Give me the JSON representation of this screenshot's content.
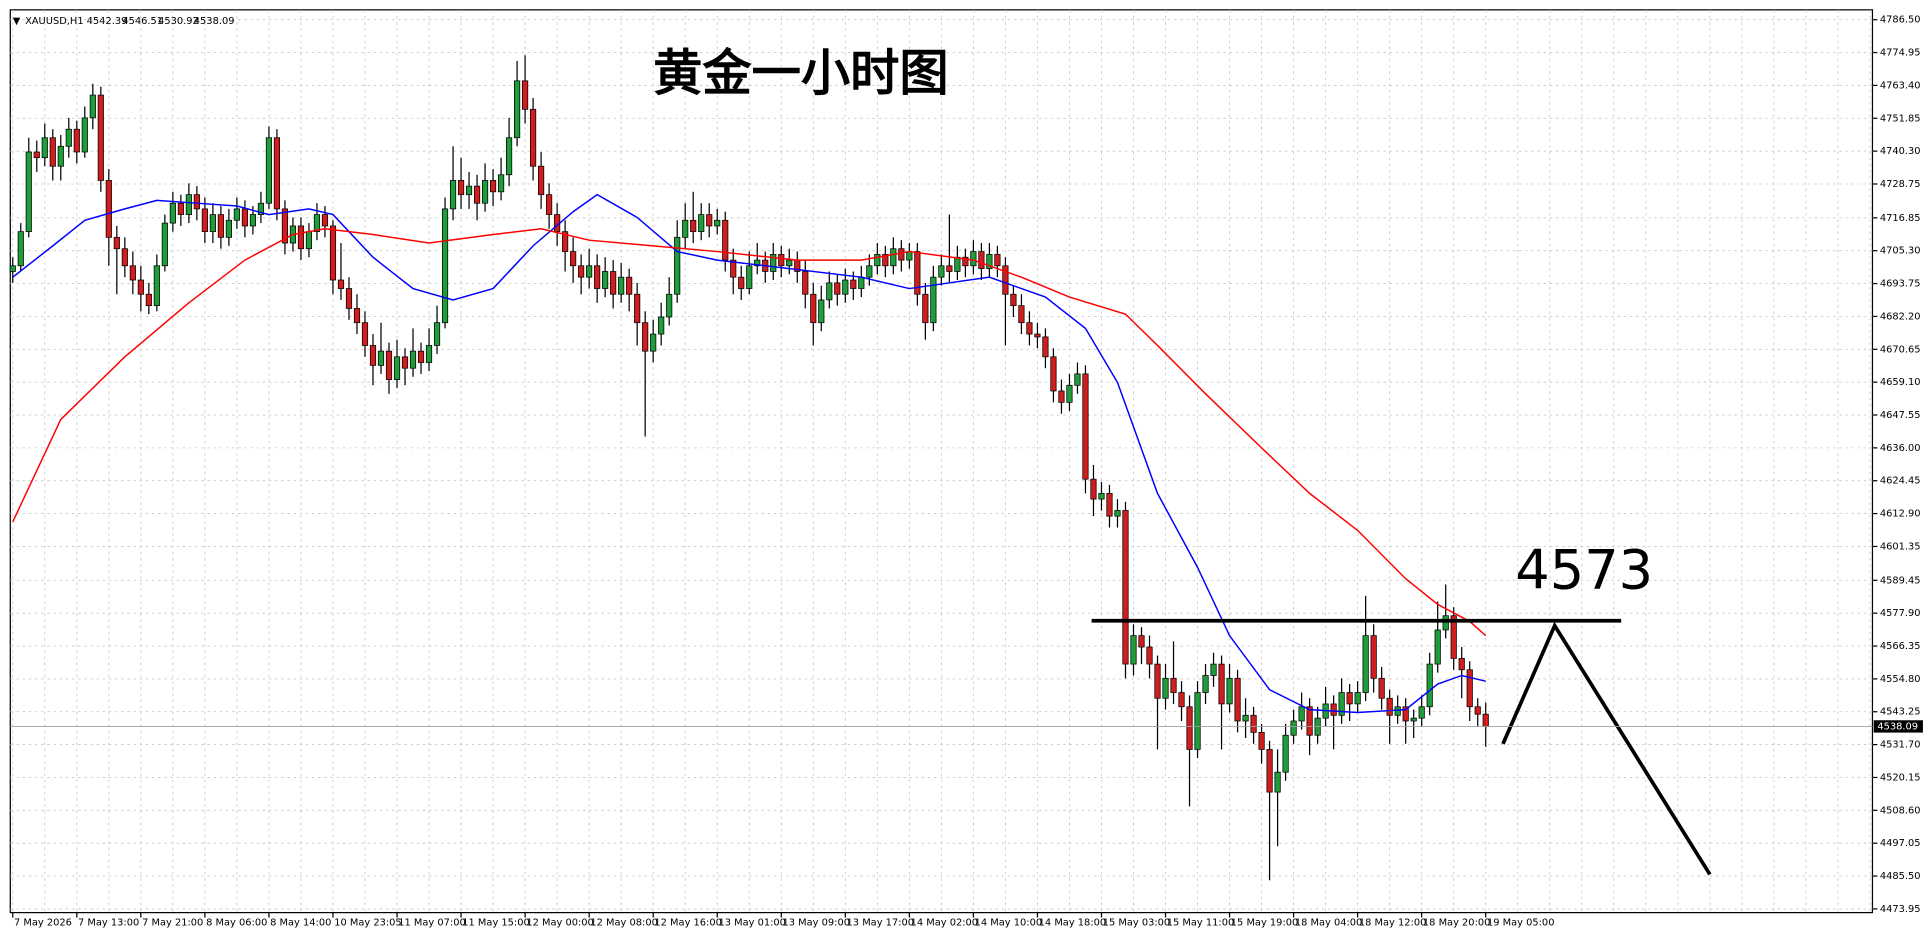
{
  "header": {
    "symbol": "XAUUSD,H1",
    "ohlc": [
      4542.39,
      4546.51,
      4530.92,
      4538.09
    ]
  },
  "chart_data": {
    "type": "candlestick",
    "title": "黄金一小时图",
    "level_label": "4573",
    "up_color": "#1f9d3a",
    "down_color": "#d11d1d",
    "ylim": [
      4472.65,
      4789.96
    ],
    "yticks": [
      {
        "value": 4786.5,
        "label": "4786.50"
      },
      {
        "value": 4774.95,
        "label": "4774.95"
      },
      {
        "value": 4763.4,
        "label": "4763.40"
      },
      {
        "value": 4751.85,
        "label": "4751.85"
      },
      {
        "value": 4740.3,
        "label": "4740.30"
      },
      {
        "value": 4728.75,
        "label": "4728.75"
      },
      {
        "value": 4716.85,
        "label": "4716.85"
      },
      {
        "value": 4705.3,
        "label": "4705.30"
      },
      {
        "value": 4693.75,
        "label": "4693.75"
      },
      {
        "value": 4682.2,
        "label": "4682.20"
      },
      {
        "value": 4670.65,
        "label": "4670.65"
      },
      {
        "value": 4659.1,
        "label": "4659.10"
      },
      {
        "value": 4647.55,
        "label": "4647.55"
      },
      {
        "value": 4636,
        "label": "4636.00"
      },
      {
        "value": 4624.45,
        "label": "4624.45"
      },
      {
        "value": 4612.9,
        "label": "4612.90"
      },
      {
        "value": 4601.35,
        "label": "4601.35"
      },
      {
        "value": 4589.45,
        "label": "4589.45"
      },
      {
        "value": 4577.9,
        "label": "4577.90"
      },
      {
        "value": 4566.35,
        "label": "4566.35"
      },
      {
        "value": 4554.8,
        "label": "4554.80"
      },
      {
        "value": 4543.25,
        "label": "4543.25"
      },
      {
        "value": 4531.7,
        "label": "4531.70"
      },
      {
        "value": 4520.15,
        "label": "4520.15"
      },
      {
        "value": 4508.6,
        "label": "4508.60"
      },
      {
        "value": 4497.05,
        "label": "4497.05"
      },
      {
        "value": 4485.5,
        "label": "4485.50"
      },
      {
        "value": 4473.95,
        "label": "4473.95"
      }
    ],
    "current_price": 4538.09,
    "categories": [
      "7 May 2026",
      "7 May 13:00",
      "7 May 21:00",
      "8 May 06:00",
      "8 May 14:00",
      "10 May 23:05",
      "11 May 07:00",
      "11 May 15:00",
      "12 May 00:00",
      "12 May 08:00",
      "12 May 16:00",
      "13 May 01:00",
      "13 May 09:00",
      "13 May 17:00",
      "14 May 02:00",
      "14 May 10:00",
      "14 May 18:00",
      "15 May 03:00",
      "15 May 11:00",
      "15 May 19:00",
      "18 May 04:00",
      "18 May 12:00",
      "18 May 20:00",
      "19 May 05:00"
    ],
    "candles": [
      [
        4698,
        4703,
        4694,
        4700
      ],
      [
        4700,
        4715,
        4698,
        4712
      ],
      [
        4712,
        4745,
        4710,
        4740
      ],
      [
        4740,
        4744,
        4733,
        4738
      ],
      [
        4738,
        4750,
        4735,
        4745
      ],
      [
        4745,
        4748,
        4730,
        4735
      ],
      [
        4735,
        4746,
        4730,
        4742
      ],
      [
        4742,
        4752,
        4738,
        4748
      ],
      [
        4748,
        4751,
        4736,
        4740
      ],
      [
        4740,
        4756,
        4738,
        4752
      ],
      [
        4752,
        4764,
        4748,
        4760
      ],
      [
        4760,
        4763,
        4726,
        4730
      ],
      [
        4730,
        4734,
        4700,
        4710
      ],
      [
        4710,
        4714,
        4690,
        4706
      ],
      [
        4706,
        4710,
        4696,
        4700
      ],
      [
        4700,
        4705,
        4690,
        4695
      ],
      [
        4695,
        4700,
        4684,
        4690
      ],
      [
        4690,
        4694,
        4683,
        4686
      ],
      [
        4686,
        4704,
        4684,
        4700
      ],
      [
        4700,
        4718,
        4698,
        4715
      ],
      [
        4715,
        4726,
        4712,
        4722
      ],
      [
        4722,
        4725,
        4714,
        4718
      ],
      [
        4718,
        4729,
        4715,
        4725
      ],
      [
        4725,
        4728,
        4716,
        4720
      ],
      [
        4720,
        4724,
        4708,
        4712
      ],
      [
        4712,
        4722,
        4708,
        4718
      ],
      [
        4718,
        4721,
        4706,
        4710
      ],
      [
        4710,
        4720,
        4707,
        4716
      ],
      [
        4716,
        4724,
        4713,
        4720
      ],
      [
        4720,
        4723,
        4710,
        4714
      ],
      [
        4714,
        4721,
        4711,
        4718
      ],
      [
        4718,
        4726,
        4715,
        4722
      ],
      [
        4722,
        4749,
        4720,
        4745
      ],
      [
        4745,
        4748,
        4716,
        4720
      ],
      [
        4720,
        4723,
        4704,
        4708
      ],
      [
        4708,
        4717,
        4705,
        4714
      ],
      [
        4714,
        4717,
        4702,
        4706
      ],
      [
        4706,
        4715,
        4703,
        4712
      ],
      [
        4712,
        4722,
        4709,
        4718
      ],
      [
        4718,
        4721,
        4710,
        4714
      ],
      [
        4714,
        4716,
        4690,
        4695
      ],
      [
        4695,
        4708,
        4688,
        4692
      ],
      [
        4692,
        4696,
        4681,
        4685
      ],
      [
        4685,
        4690,
        4676,
        4680
      ],
      [
        4680,
        4684,
        4668,
        4672
      ],
      [
        4672,
        4676,
        4658,
        4665
      ],
      [
        4665,
        4680,
        4662,
        4670
      ],
      [
        4670,
        4673,
        4655,
        4660
      ],
      [
        4660,
        4674,
        4657,
        4668
      ],
      [
        4668,
        4671,
        4658,
        4664
      ],
      [
        4664,
        4678,
        4661,
        4670
      ],
      [
        4670,
        4673,
        4662,
        4666
      ],
      [
        4666,
        4678,
        4663,
        4672
      ],
      [
        4672,
        4686,
        4669,
        4680
      ],
      [
        4680,
        4724,
        4678,
        4720
      ],
      [
        4720,
        4742,
        4716,
        4730
      ],
      [
        4730,
        4738,
        4720,
        4725
      ],
      [
        4725,
        4733,
        4720,
        4728
      ],
      [
        4728,
        4732,
        4716,
        4722
      ],
      [
        4722,
        4736,
        4719,
        4730
      ],
      [
        4730,
        4734,
        4721,
        4726
      ],
      [
        4726,
        4738,
        4723,
        4732
      ],
      [
        4732,
        4752,
        4728,
        4745
      ],
      [
        4745,
        4772,
        4742,
        4765
      ],
      [
        4765,
        4774,
        4750,
        4755
      ],
      [
        4755,
        4759,
        4730,
        4735
      ],
      [
        4735,
        4740,
        4720,
        4725
      ],
      [
        4725,
        4729,
        4713,
        4718
      ],
      [
        4718,
        4722,
        4707,
        4712
      ],
      [
        4712,
        4716,
        4698,
        4705
      ],
      [
        4705,
        4710,
        4694,
        4700
      ],
      [
        4700,
        4704,
        4690,
        4696
      ],
      [
        4696,
        4706,
        4692,
        4700
      ],
      [
        4700,
        4704,
        4687,
        4692
      ],
      [
        4692,
        4703,
        4689,
        4698
      ],
      [
        4698,
        4702,
        4685,
        4690
      ],
      [
        4690,
        4701,
        4687,
        4696
      ],
      [
        4696,
        4699,
        4684,
        4690
      ],
      [
        4690,
        4694,
        4672,
        4680
      ],
      [
        4680,
        4684,
        4640,
        4670
      ],
      [
        4670,
        4681,
        4666,
        4676
      ],
      [
        4676,
        4687,
        4672,
        4682
      ],
      [
        4682,
        4696,
        4679,
        4690
      ],
      [
        4690,
        4716,
        4687,
        4710
      ],
      [
        4710,
        4722,
        4706,
        4716
      ],
      [
        4716,
        4726,
        4708,
        4712
      ],
      [
        4712,
        4722,
        4709,
        4718
      ],
      [
        4718,
        4722,
        4710,
        4714
      ],
      [
        4714,
        4720,
        4711,
        4716
      ],
      [
        4716,
        4719,
        4698,
        4702
      ],
      [
        4702,
        4706,
        4690,
        4696
      ],
      [
        4696,
        4700,
        4688,
        4692
      ],
      [
        4692,
        4705,
        4690,
        4700
      ],
      [
        4700,
        4708,
        4697,
        4702
      ],
      [
        4702,
        4705,
        4694,
        4698
      ],
      [
        4698,
        4708,
        4695,
        4704
      ],
      [
        4704,
        4707,
        4696,
        4700
      ],
      [
        4700,
        4706,
        4697,
        4702
      ],
      [
        4702,
        4705,
        4694,
        4698
      ],
      [
        4698,
        4702,
        4685,
        4690
      ],
      [
        4690,
        4694,
        4672,
        4680
      ],
      [
        4680,
        4693,
        4677,
        4688
      ],
      [
        4688,
        4698,
        4685,
        4694
      ],
      [
        4694,
        4697,
        4686,
        4690
      ],
      [
        4690,
        4699,
        4687,
        4695
      ],
      [
        4695,
        4698,
        4688,
        4692
      ],
      [
        4692,
        4700,
        4689,
        4696
      ],
      [
        4696,
        4704,
        4693,
        4700
      ],
      [
        4700,
        4708,
        4697,
        4704
      ],
      [
        4704,
        4707,
        4696,
        4700
      ],
      [
        4700,
        4710,
        4697,
        4706
      ],
      [
        4706,
        4709,
        4698,
        4702
      ],
      [
        4702,
        4708,
        4699,
        4705
      ],
      [
        4705,
        4708,
        4686,
        4690
      ],
      [
        4690,
        4694,
        4674,
        4680
      ],
      [
        4680,
        4700,
        4677,
        4696
      ],
      [
        4696,
        4704,
        4693,
        4700
      ],
      [
        4700,
        4718,
        4694,
        4698
      ],
      [
        4698,
        4707,
        4695,
        4703
      ],
      [
        4703,
        4706,
        4696,
        4700
      ],
      [
        4700,
        4709,
        4697,
        4705
      ],
      [
        4705,
        4708,
        4695,
        4699
      ],
      [
        4699,
        4708,
        4696,
        4704
      ],
      [
        4704,
        4707,
        4696,
        4700
      ],
      [
        4700,
        4703,
        4672,
        4690
      ],
      [
        4690,
        4693,
        4682,
        4686
      ],
      [
        4686,
        4690,
        4676,
        4680
      ],
      [
        4680,
        4684,
        4672,
        4676
      ],
      [
        4676,
        4680,
        4671,
        4675
      ],
      [
        4675,
        4678,
        4664,
        4668
      ],
      [
        4668,
        4671,
        4652,
        4656
      ],
      [
        4656,
        4660,
        4648,
        4652
      ],
      [
        4652,
        4662,
        4649,
        4658
      ],
      [
        4658,
        4666,
        4655,
        4662
      ],
      [
        4662,
        4665,
        4620,
        4625
      ],
      [
        4625,
        4630,
        4612,
        4618
      ],
      [
        4618,
        4624,
        4614,
        4620
      ],
      [
        4620,
        4623,
        4608,
        4612
      ],
      [
        4612,
        4618,
        4608,
        4614
      ],
      [
        4614,
        4617,
        4555,
        4560
      ],
      [
        4560,
        4574,
        4556,
        4570
      ],
      [
        4570,
        4573,
        4560,
        4566
      ],
      [
        4566,
        4570,
        4555,
        4560
      ],
      [
        4560,
        4563,
        4530,
        4548
      ],
      [
        4548,
        4560,
        4544,
        4555
      ],
      [
        4555,
        4568,
        4546,
        4550
      ],
      [
        4550,
        4554,
        4540,
        4545
      ],
      [
        4545,
        4549,
        4510,
        4530
      ],
      [
        4530,
        4554,
        4527,
        4550
      ],
      [
        4550,
        4560,
        4546,
        4556
      ],
      [
        4556,
        4564,
        4552,
        4560
      ],
      [
        4560,
        4563,
        4530,
        4546
      ],
      [
        4546,
        4560,
        4543,
        4555
      ],
      [
        4555,
        4558,
        4536,
        4540
      ],
      [
        4540,
        4548,
        4534,
        4542
      ],
      [
        4542,
        4545,
        4532,
        4536
      ],
      [
        4536,
        4539,
        4525,
        4530
      ],
      [
        4530,
        4533,
        4484,
        4515
      ],
      [
        4515,
        4530,
        4496,
        4522
      ],
      [
        4522,
        4539,
        4519,
        4535
      ],
      [
        4535,
        4544,
        4532,
        4540
      ],
      [
        4540,
        4550,
        4537,
        4545
      ],
      [
        4545,
        4548,
        4528,
        4535
      ],
      [
        4535,
        4545,
        4532,
        4541
      ],
      [
        4541,
        4552,
        4538,
        4546
      ],
      [
        4546,
        4549,
        4530,
        4542
      ],
      [
        4542,
        4555,
        4539,
        4550
      ],
      [
        4550,
        4553,
        4540,
        4546
      ],
      [
        4546,
        4554,
        4543,
        4550
      ],
      [
        4550,
        4584,
        4547,
        4570
      ],
      [
        4570,
        4574,
        4550,
        4555
      ],
      [
        4555,
        4559,
        4544,
        4548
      ],
      [
        4548,
        4551,
        4532,
        4542
      ],
      [
        4542,
        4549,
        4539,
        4545
      ],
      [
        4545,
        4548,
        4532,
        4540
      ],
      [
        4540,
        4544,
        4534,
        4541
      ],
      [
        4541,
        4549,
        4538,
        4545
      ],
      [
        4545,
        4564,
        4542,
        4560
      ],
      [
        4560,
        4582,
        4557,
        4572
      ],
      [
        4572,
        4588,
        4569,
        4577
      ],
      [
        4577,
        4580,
        4558,
        4562
      ],
      [
        4562,
        4566,
        4548,
        4558
      ],
      [
        4558,
        4561,
        4540,
        4545
      ],
      [
        4545,
        4548,
        4538,
        4542.39
      ],
      [
        4542.39,
        4546.51,
        4530.92,
        4538.09
      ]
    ],
    "moving_averages": [
      {
        "color": "#0000ff",
        "x": [
          0,
          5,
          9,
          14,
          18,
          23,
          28,
          32,
          37,
          40,
          45,
          50,
          55,
          60,
          65,
          70,
          73,
          78,
          83,
          88,
          106,
          112,
          122,
          129,
          134,
          138,
          143,
          148,
          152,
          157,
          162,
          168,
          174,
          178,
          181,
          184
        ],
        "values": [
          4696,
          4707,
          4716,
          4720,
          4723,
          4722,
          4721,
          4718,
          4720,
          4718,
          4703,
          4692,
          4688,
          4692,
          4707,
          4719,
          4725,
          4717,
          4705,
          4702,
          4696,
          4692,
          4696,
          4689,
          4678,
          4659,
          4620,
          4594,
          4570,
          4551,
          4544,
          4543,
          4544,
          4553,
          4556,
          4554
        ]
      },
      {
        "color": "#ff0000",
        "x": [
          0,
          6,
          14,
          22,
          29,
          35,
          39,
          45,
          52,
          60,
          66,
          72,
          80,
          88,
          98,
          106,
          112,
          120,
          126,
          132,
          139,
          143,
          149,
          156,
          162,
          168,
          174,
          178,
          182,
          184
        ],
        "values": [
          4610,
          4646,
          4668,
          4687,
          4702,
          4711,
          4713,
          4711,
          4708,
          4711,
          4713,
          4709,
          4707,
          4705,
          4702,
          4702,
          4705,
          4702,
          4696,
          4689,
          4683,
          4672,
          4655,
          4636,
          4620,
          4607,
          4590,
          4581,
          4575,
          4570
        ]
      }
    ]
  }
}
